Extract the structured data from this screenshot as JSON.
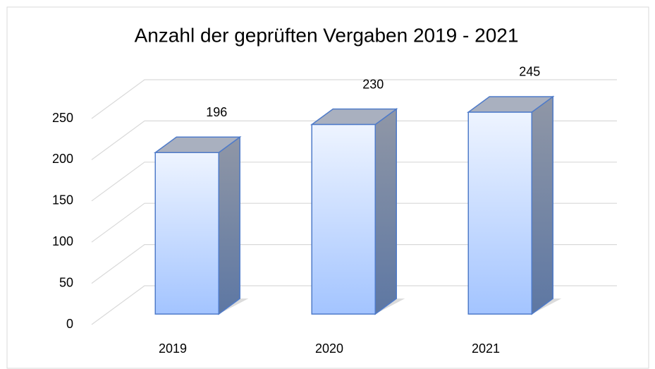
{
  "chart_data": {
    "type": "bar",
    "title": "Anzahl der geprüften Vergaben 2019 - 2021",
    "categories": [
      "2019",
      "2020",
      "2021"
    ],
    "values": [
      196,
      230,
      245
    ],
    "color": "#a3c4ff",
    "ylim": [
      0,
      250
    ],
    "yticks": [
      0,
      50,
      100,
      150,
      200,
      250
    ],
    "grid": true
  }
}
